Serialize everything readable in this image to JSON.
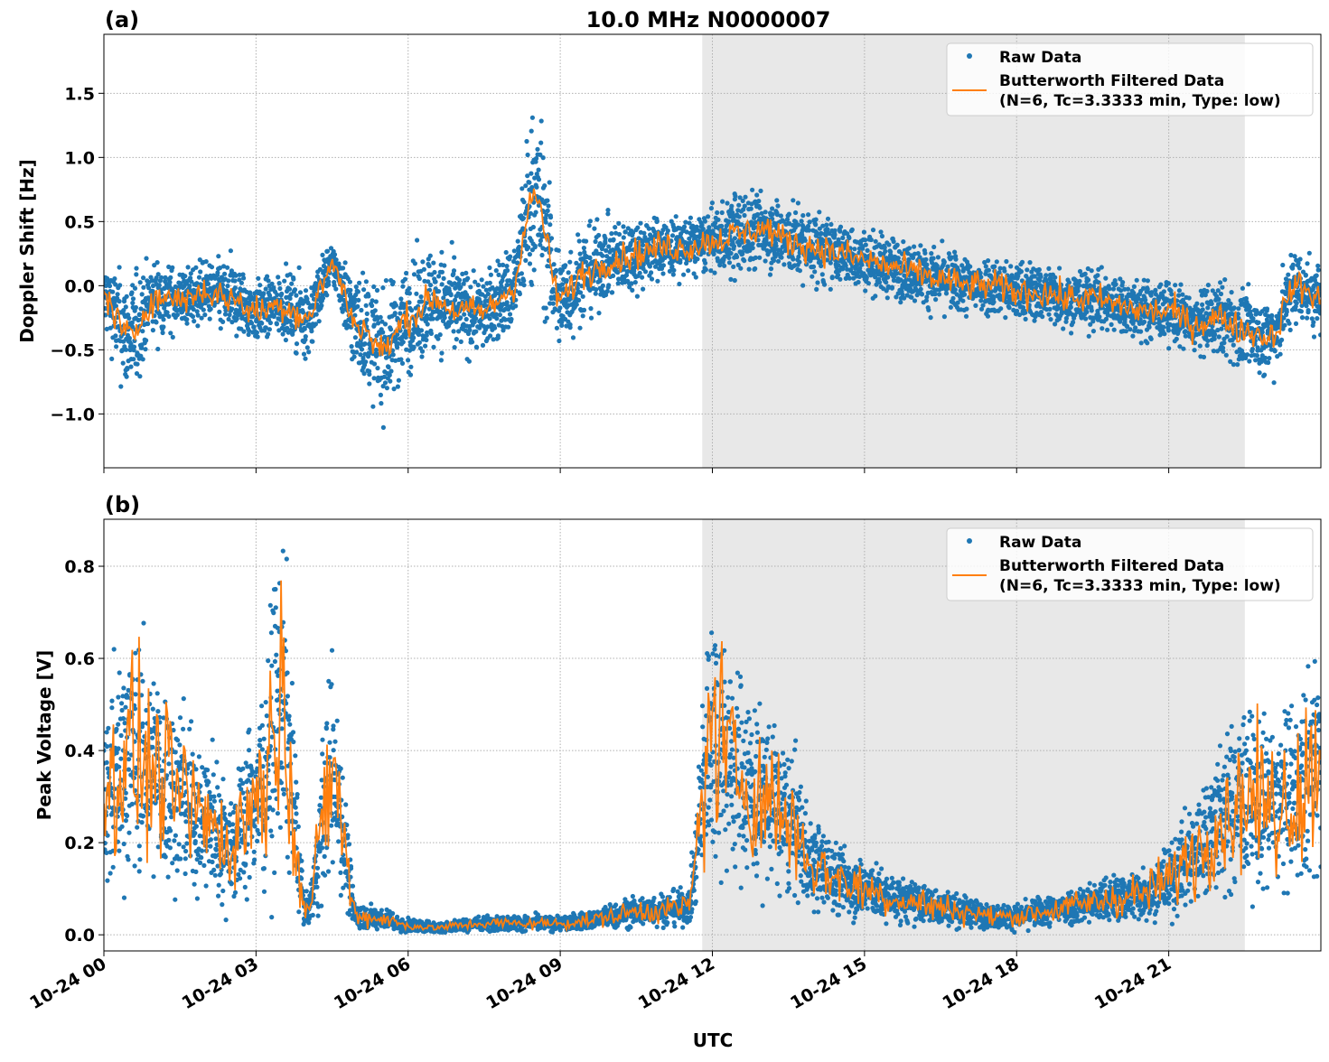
{
  "figure": {
    "title": "10.0 MHz N0000007",
    "xlabel": "UTC"
  },
  "chart_data": [
    {
      "type": "scatter+line",
      "panel_label": "(a)",
      "ylabel": "Doppler Shift [Hz]",
      "xlim_hours": [
        0,
        24
      ],
      "ylim": [
        -1.42,
        1.96
      ],
      "yticks": [
        -1.0,
        -0.5,
        0.0,
        0.5,
        1.0,
        1.5
      ],
      "ytick_labels": [
        "−1.0",
        "−0.5",
        "0.0",
        "0.5",
        "1.0",
        "1.5"
      ],
      "grid": true,
      "shaded_interval_hours": [
        11.8,
        22.5
      ],
      "legend_placement": "top-right",
      "legend": [
        "Raw Data",
        "Butterworth Filtered Data\n(N=6, Tc=3.3333 min, Type: low)"
      ],
      "legend_line1": "Butterworth Filtered Data",
      "legend_line2": "(N=6, Tc=3.3333 min, Type: low)",
      "x_hours": [
        0,
        0.5,
        1,
        1.5,
        2,
        2.5,
        3,
        3.5,
        4,
        4.5,
        5,
        5.5,
        6,
        6.5,
        7,
        7.5,
        8,
        8.5,
        9,
        9.5,
        10,
        10.5,
        11,
        11.5,
        12,
        12.5,
        13,
        13.5,
        14,
        14.5,
        15,
        15.5,
        16,
        16.5,
        17,
        17.5,
        18,
        18.5,
        19,
        19.5,
        20,
        20.5,
        21,
        21.5,
        22,
        22.5,
        23,
        23.5,
        24
      ],
      "filtered": [
        -0.1,
        -0.4,
        -0.1,
        -0.1,
        -0.05,
        -0.1,
        -0.2,
        -0.15,
        -0.25,
        0.15,
        -0.3,
        -0.5,
        -0.25,
        -0.1,
        -0.2,
        -0.2,
        -0.05,
        0.7,
        -0.1,
        0.1,
        0.2,
        0.25,
        0.3,
        0.3,
        0.35,
        0.4,
        0.45,
        0.35,
        0.3,
        0.25,
        0.2,
        0.15,
        0.1,
        0.05,
        0.0,
        0.0,
        -0.05,
        -0.05,
        -0.1,
        -0.1,
        -0.15,
        -0.2,
        -0.2,
        -0.3,
        -0.25,
        -0.35,
        -0.4,
        0.0,
        -0.1
      ],
      "raw_spread": [
        0.25,
        0.4,
        0.25,
        0.2,
        0.2,
        0.25,
        0.2,
        0.2,
        0.25,
        0.15,
        0.35,
        0.4,
        0.35,
        0.35,
        0.3,
        0.25,
        0.3,
        0.6,
        0.35,
        0.3,
        0.25,
        0.25,
        0.2,
        0.2,
        0.2,
        0.3,
        0.25,
        0.25,
        0.25,
        0.2,
        0.2,
        0.2,
        0.2,
        0.2,
        0.2,
        0.2,
        0.2,
        0.2,
        0.2,
        0.2,
        0.2,
        0.2,
        0.2,
        0.2,
        0.25,
        0.25,
        0.25,
        0.25,
        0.25
      ],
      "colors": {
        "raw": "#1f77b4",
        "filtered": "#ff7f0e",
        "shade": "#e8e8e8"
      }
    },
    {
      "type": "scatter+line",
      "panel_label": "(b)",
      "ylabel": "Peak Voltage [V]",
      "xlim_hours": [
        0,
        24
      ],
      "ylim": [
        -0.035,
        0.902
      ],
      "yticks": [
        0.0,
        0.2,
        0.4,
        0.6,
        0.8
      ],
      "ytick_labels": [
        "0.0",
        "0.2",
        "0.4",
        "0.6",
        "0.8"
      ],
      "grid": true,
      "shaded_interval_hours": [
        11.8,
        22.5
      ],
      "legend_placement": "top-right",
      "legend_line1": "Butterworth Filtered Data",
      "legend_line2": "(N=6, Tc=3.3333 min, Type: low)",
      "x_hours": [
        0,
        0.5,
        1,
        1.5,
        2,
        2.5,
        3,
        3.5,
        4,
        4.5,
        5,
        5.5,
        6,
        6.5,
        7,
        7.5,
        8,
        8.5,
        9,
        9.5,
        10,
        10.5,
        11,
        11.5,
        12,
        12.5,
        13,
        13.5,
        14,
        14.5,
        15,
        15.5,
        16,
        16.5,
        17,
        17.5,
        18,
        18.5,
        19,
        19.5,
        20,
        20.5,
        21,
        21.5,
        22,
        22.5,
        23,
        23.5,
        24
      ],
      "filtered": [
        0.3,
        0.4,
        0.35,
        0.3,
        0.25,
        0.2,
        0.3,
        0.5,
        0.05,
        0.35,
        0.04,
        0.035,
        0.02,
        0.015,
        0.02,
        0.025,
        0.025,
        0.025,
        0.025,
        0.03,
        0.04,
        0.05,
        0.055,
        0.06,
        0.45,
        0.35,
        0.3,
        0.25,
        0.15,
        0.12,
        0.1,
        0.08,
        0.07,
        0.06,
        0.05,
        0.04,
        0.04,
        0.05,
        0.06,
        0.07,
        0.08,
        0.09,
        0.12,
        0.18,
        0.25,
        0.3,
        0.28,
        0.3,
        0.4
      ],
      "colors": {
        "raw": "#1f77b4",
        "filtered": "#ff7f0e",
        "shade": "#e8e8e8"
      }
    }
  ],
  "x_axis": {
    "tick_hours": [
      0,
      3,
      6,
      9,
      12,
      15,
      18,
      21
    ],
    "tick_labels": [
      "10-24 00",
      "10-24 03",
      "10-24 06",
      "10-24 09",
      "10-24 12",
      "10-24 15",
      "10-24 18",
      "10-24 21"
    ]
  }
}
